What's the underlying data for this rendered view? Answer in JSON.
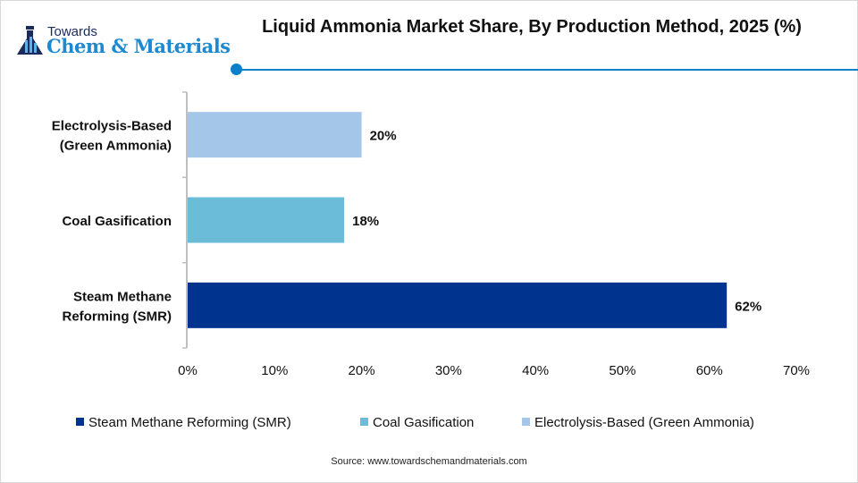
{
  "logo": {
    "top": "Towards",
    "brand": "Chem & Materials"
  },
  "chart_data": {
    "type": "bar",
    "orientation": "horizontal",
    "title": "Liquid Ammonia Market Share, By Production Method, 2025 (%)",
    "categories": [
      "Steam Methane Reforming (SMR)",
      "Coal Gasification",
      "Electrolysis-Based (Green Ammonia)"
    ],
    "category_labels": [
      [
        "Steam Methane",
        "Reforming (SMR)"
      ],
      [
        "Coal Gasification"
      ],
      [
        "Electrolysis-Based",
        "(Green Ammonia)"
      ]
    ],
    "values": [
      62,
      18,
      20
    ],
    "data_labels": [
      "62%",
      "18%",
      "20%"
    ],
    "colors": [
      "#00338D",
      "#6BBCD9",
      "#A4C6E8"
    ],
    "xlim": [
      0,
      70
    ],
    "xticks": [
      "0%",
      "10%",
      "20%",
      "30%",
      "40%",
      "50%",
      "60%",
      "70%"
    ],
    "grid": false,
    "legend_position": "bottom",
    "legend": [
      "Steam Methane Reforming (SMR)",
      "Coal Gasification",
      "Electrolysis-Based (Green Ammonia)"
    ]
  },
  "source": "Source: www.towardschemandmaterials.com",
  "accent": "#0A7FCB"
}
